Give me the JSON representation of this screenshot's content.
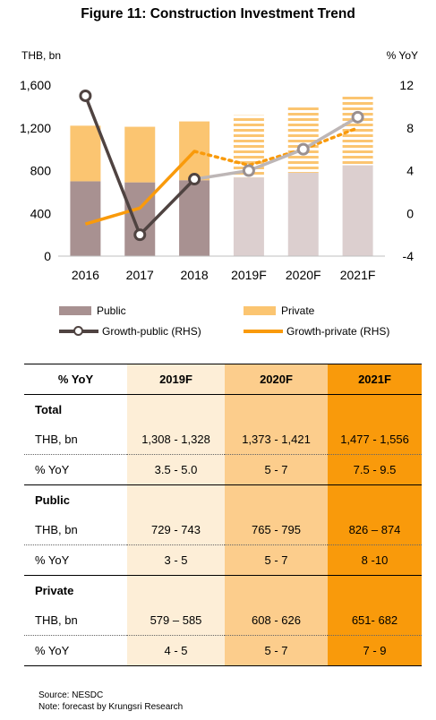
{
  "title": "Figure 11: Construction Investment Trend",
  "chart_data": {
    "type": "bar",
    "categories": [
      "2016",
      "2017",
      "2018",
      "2019F",
      "2020F",
      "2021F"
    ],
    "left_axis": {
      "label": "THB, bn",
      "ticks": [
        "0",
        "400",
        "800",
        "1,200",
        "1,600"
      ],
      "ylim": [
        0,
        1600
      ]
    },
    "right_axis": {
      "label": "% YoY",
      "ticks": [
        "-4",
        "0",
        "4",
        "8",
        "12"
      ],
      "ylim": [
        -4,
        12
      ]
    },
    "series": [
      {
        "name": "Public",
        "kind": "stacked-bar",
        "axis": "left",
        "values": [
          700,
          690,
          710,
          736,
          780,
          850
        ],
        "forecast_from": 3
      },
      {
        "name": "Private",
        "kind": "stacked-bar",
        "axis": "left",
        "values": [
          520,
          520,
          550,
          582,
          617,
          650
        ],
        "forecast_from": 3
      },
      {
        "name": "Growth-public (RHS)",
        "kind": "line",
        "axis": "right",
        "values": [
          11,
          -2,
          3.2,
          4,
          6,
          9
        ],
        "forecast_from": 2
      },
      {
        "name": "Growth-private (RHS)",
        "kind": "line",
        "axis": "right",
        "values": [
          -1,
          0.5,
          5.8,
          4.5,
          6,
          8
        ],
        "forecast_from": 2
      }
    ],
    "colors": {
      "public": "#a89191",
      "public_forecast": "#dccfcf",
      "private": "#fbc571",
      "private_forecast": "#fbc571",
      "growth_public": "#4f4341",
      "growth_public_forecast": "#bdb6b6",
      "growth_private": "#f99a0b"
    },
    "grid": false,
    "legend_position": "bottom"
  },
  "table": {
    "header": [
      "% YoY",
      "2019F",
      "2020F",
      "2021F"
    ],
    "sections": [
      {
        "name": "Total",
        "rows": [
          {
            "label": "THB, bn",
            "values": [
              "1,308 - 1,328",
              "1,373 - 1,421",
              "1,477 - 1,556"
            ]
          },
          {
            "label": "% YoY",
            "values": [
              "3.5 - 5.0",
              "5 - 7",
              "7.5 - 9.5"
            ]
          }
        ]
      },
      {
        "name": "Public",
        "rows": [
          {
            "label": "THB, bn",
            "values": [
              "729 - 743",
              "765 - 795",
              "826 – 874"
            ]
          },
          {
            "label": "% YoY",
            "values": [
              "3 - 5",
              "5 - 7",
              "8 -10"
            ]
          }
        ]
      },
      {
        "name": "Private",
        "rows": [
          {
            "label": "THB, bn",
            "values": [
              "579 – 585",
              "608 - 626",
              "651- 682"
            ]
          },
          {
            "label": "% YoY",
            "values": [
              "4 - 5",
              "5 - 7",
              "7 - 9"
            ]
          }
        ]
      }
    ]
  },
  "footnote": {
    "source": "Source: NESDC",
    "note": "Note: forecast by Krungsri Research"
  }
}
